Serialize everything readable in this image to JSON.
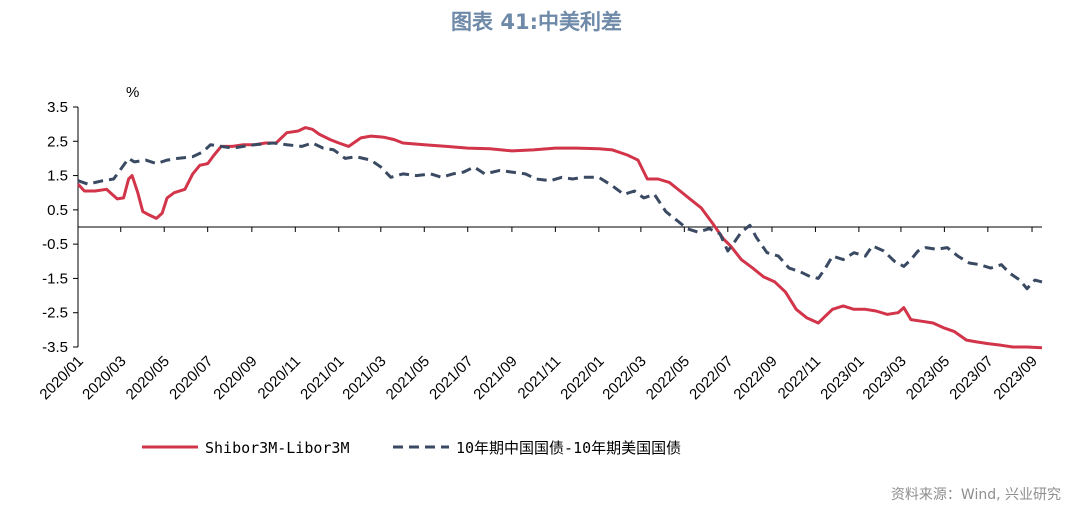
{
  "title": "图表 41:中美利差",
  "source": "资料来源：Wind, 兴业研究",
  "chart_data": {
    "type": "line",
    "unit_label": "%",
    "ylim": [
      -3.5,
      3.5
    ],
    "yticks": [
      3.5,
      2.5,
      1.5,
      0.5,
      -0.5,
      -1.5,
      -2.5,
      -3.5
    ],
    "xlim": [
      "2020-01-01",
      "2023-09-15"
    ],
    "xticks": [
      "2020/01",
      "2020/03",
      "2020/05",
      "2020/07",
      "2020/09",
      "2020/11",
      "2021/01",
      "2021/03",
      "2021/05",
      "2021/07",
      "2021/09",
      "2021/11",
      "2022/01",
      "2022/03",
      "2022/05",
      "2022/07",
      "2022/09",
      "2022/11",
      "2023/01",
      "2023/03",
      "2023/05",
      "2023/07",
      "2023/09"
    ],
    "grid": false,
    "legend_position": "bottom",
    "series": [
      {
        "name": "Shibor3M-Libor3M",
        "color": "#d2344a",
        "style": "solid",
        "points": [
          [
            "2020-01-01",
            1.25
          ],
          [
            "2020-01-10",
            1.05
          ],
          [
            "2020-01-25",
            1.05
          ],
          [
            "2020-02-10",
            1.1
          ],
          [
            "2020-02-25",
            0.82
          ],
          [
            "2020-03-05",
            0.85
          ],
          [
            "2020-03-12",
            1.4
          ],
          [
            "2020-03-17",
            1.5
          ],
          [
            "2020-03-25",
            1.0
          ],
          [
            "2020-04-01",
            0.45
          ],
          [
            "2020-04-10",
            0.35
          ],
          [
            "2020-04-20",
            0.25
          ],
          [
            "2020-04-28",
            0.4
          ],
          [
            "2020-05-05",
            0.85
          ],
          [
            "2020-05-15",
            1.0
          ],
          [
            "2020-05-30",
            1.1
          ],
          [
            "2020-06-10",
            1.55
          ],
          [
            "2020-06-20",
            1.8
          ],
          [
            "2020-07-01",
            1.85
          ],
          [
            "2020-07-10",
            2.1
          ],
          [
            "2020-07-20",
            2.35
          ],
          [
            "2020-08-05",
            2.35
          ],
          [
            "2020-08-20",
            2.4
          ],
          [
            "2020-09-05",
            2.4
          ],
          [
            "2020-09-20",
            2.45
          ],
          [
            "2020-10-05",
            2.45
          ],
          [
            "2020-10-20",
            2.75
          ],
          [
            "2020-11-05",
            2.8
          ],
          [
            "2020-11-15",
            2.9
          ],
          [
            "2020-11-25",
            2.85
          ],
          [
            "2020-12-05",
            2.7
          ],
          [
            "2020-12-20",
            2.55
          ],
          [
            "2021-01-01",
            2.45
          ],
          [
            "2021-01-15",
            2.35
          ],
          [
            "2021-02-01",
            2.6
          ],
          [
            "2021-02-15",
            2.65
          ],
          [
            "2021-03-05",
            2.62
          ],
          [
            "2021-03-20",
            2.55
          ],
          [
            "2021-04-01",
            2.45
          ],
          [
            "2021-05-01",
            2.4
          ],
          [
            "2021-06-01",
            2.35
          ],
          [
            "2021-07-01",
            2.3
          ],
          [
            "2021-08-01",
            2.28
          ],
          [
            "2021-09-01",
            2.22
          ],
          [
            "2021-10-01",
            2.25
          ],
          [
            "2021-11-01",
            2.3
          ],
          [
            "2021-12-01",
            2.3
          ],
          [
            "2022-01-01",
            2.28
          ],
          [
            "2022-01-20",
            2.25
          ],
          [
            "2022-02-10",
            2.1
          ],
          [
            "2022-02-25",
            1.95
          ],
          [
            "2022-03-10",
            1.4
          ],
          [
            "2022-03-25",
            1.4
          ],
          [
            "2022-04-10",
            1.3
          ],
          [
            "2022-04-25",
            1.05
          ],
          [
            "2022-05-10",
            0.8
          ],
          [
            "2022-05-25",
            0.55
          ],
          [
            "2022-06-10",
            0.1
          ],
          [
            "2022-06-25",
            -0.35
          ],
          [
            "2022-07-05",
            -0.55
          ],
          [
            "2022-07-20",
            -0.95
          ],
          [
            "2022-08-05",
            -1.2
          ],
          [
            "2022-08-20",
            -1.45
          ],
          [
            "2022-09-05",
            -1.6
          ],
          [
            "2022-09-20",
            -1.9
          ],
          [
            "2022-10-05",
            -2.4
          ],
          [
            "2022-10-20",
            -2.65
          ],
          [
            "2022-11-05",
            -2.8
          ],
          [
            "2022-11-15",
            -2.6
          ],
          [
            "2022-11-25",
            -2.4
          ],
          [
            "2022-12-10",
            -2.3
          ],
          [
            "2022-12-25",
            -2.4
          ],
          [
            "2023-01-10",
            -2.4
          ],
          [
            "2023-01-25",
            -2.45
          ],
          [
            "2023-02-10",
            -2.55
          ],
          [
            "2023-02-25",
            -2.5
          ],
          [
            "2023-03-05",
            -2.35
          ],
          [
            "2023-03-15",
            -2.7
          ],
          [
            "2023-03-31",
            -2.75
          ],
          [
            "2023-04-15",
            -2.8
          ],
          [
            "2023-05-01",
            -2.95
          ],
          [
            "2023-05-15",
            -3.05
          ],
          [
            "2023-06-01",
            -3.3
          ],
          [
            "2023-06-15",
            -3.35
          ],
          [
            "2023-07-01",
            -3.4
          ],
          [
            "2023-07-20",
            -3.45
          ],
          [
            "2023-08-05",
            -3.5
          ],
          [
            "2023-08-25",
            -3.5
          ],
          [
            "2023-09-15",
            -3.52
          ]
        ]
      },
      {
        "name": "10年期中国国债-10年期美国国债",
        "color": "#3b4a63",
        "style": "dashed",
        "points": [
          [
            "2020-01-01",
            1.35
          ],
          [
            "2020-01-15",
            1.25
          ],
          [
            "2020-02-05",
            1.35
          ],
          [
            "2020-02-20",
            1.4
          ],
          [
            "2020-03-05",
            1.8
          ],
          [
            "2020-03-12",
            2.0
          ],
          [
            "2020-03-20",
            1.9
          ],
          [
            "2020-04-05",
            1.95
          ],
          [
            "2020-04-20",
            1.85
          ],
          [
            "2020-05-05",
            1.95
          ],
          [
            "2020-05-20",
            2.0
          ],
          [
            "2020-06-10",
            2.05
          ],
          [
            "2020-06-25",
            2.2
          ],
          [
            "2020-07-05",
            2.4
          ],
          [
            "2020-07-20",
            2.35
          ],
          [
            "2020-08-05",
            2.3
          ],
          [
            "2020-08-20",
            2.35
          ],
          [
            "2020-09-05",
            2.4
          ],
          [
            "2020-10-01",
            2.45
          ],
          [
            "2020-10-20",
            2.4
          ],
          [
            "2020-11-10",
            2.35
          ],
          [
            "2020-11-25",
            2.45
          ],
          [
            "2020-12-10",
            2.3
          ],
          [
            "2020-12-25",
            2.25
          ],
          [
            "2021-01-10",
            2.0
          ],
          [
            "2021-01-25",
            2.05
          ],
          [
            "2021-02-15",
            1.95
          ],
          [
            "2021-03-01",
            1.75
          ],
          [
            "2021-03-15",
            1.45
          ],
          [
            "2021-04-01",
            1.55
          ],
          [
            "2021-04-20",
            1.5
          ],
          [
            "2021-05-10",
            1.55
          ],
          [
            "2021-05-25",
            1.45
          ],
          [
            "2021-06-10",
            1.55
          ],
          [
            "2021-06-25",
            1.6
          ],
          [
            "2021-07-10",
            1.75
          ],
          [
            "2021-07-25",
            1.55
          ],
          [
            "2021-08-15",
            1.65
          ],
          [
            "2021-09-01",
            1.6
          ],
          [
            "2021-09-20",
            1.55
          ],
          [
            "2021-10-05",
            1.4
          ],
          [
            "2021-10-25",
            1.35
          ],
          [
            "2021-11-10",
            1.45
          ],
          [
            "2021-11-25",
            1.4
          ],
          [
            "2021-12-10",
            1.45
          ],
          [
            "2022-01-01",
            1.45
          ],
          [
            "2022-01-20",
            1.2
          ],
          [
            "2022-02-05",
            0.95
          ],
          [
            "2022-02-20",
            1.05
          ],
          [
            "2022-03-05",
            0.85
          ],
          [
            "2022-03-20",
            0.95
          ],
          [
            "2022-04-05",
            0.45
          ],
          [
            "2022-04-20",
            0.2
          ],
          [
            "2022-05-05",
            -0.05
          ],
          [
            "2022-05-20",
            -0.15
          ],
          [
            "2022-06-05",
            -0.05
          ],
          [
            "2022-06-20",
            -0.2
          ],
          [
            "2022-07-01",
            -0.7
          ],
          [
            "2022-07-10",
            -0.45
          ],
          [
            "2022-07-20",
            -0.15
          ],
          [
            "2022-08-01",
            0.05
          ],
          [
            "2022-08-10",
            -0.3
          ],
          [
            "2022-08-25",
            -0.75
          ],
          [
            "2022-09-10",
            -0.85
          ],
          [
            "2022-09-25",
            -1.2
          ],
          [
            "2022-10-10",
            -1.3
          ],
          [
            "2022-10-25",
            -1.45
          ],
          [
            "2022-11-05",
            -1.5
          ],
          [
            "2022-11-15",
            -1.2
          ],
          [
            "2022-11-25",
            -0.85
          ],
          [
            "2022-12-10",
            -0.95
          ],
          [
            "2022-12-25",
            -0.75
          ],
          [
            "2023-01-10",
            -0.85
          ],
          [
            "2023-01-20",
            -0.55
          ],
          [
            "2023-02-05",
            -0.7
          ],
          [
            "2023-02-20",
            -1.0
          ],
          [
            "2023-03-05",
            -1.15
          ],
          [
            "2023-03-15",
            -0.95
          ],
          [
            "2023-03-25",
            -0.7
          ],
          [
            "2023-04-05",
            -0.6
          ],
          [
            "2023-04-20",
            -0.65
          ],
          [
            "2023-05-05",
            -0.6
          ],
          [
            "2023-05-20",
            -0.85
          ],
          [
            "2023-06-05",
            -1.05
          ],
          [
            "2023-06-20",
            -1.1
          ],
          [
            "2023-07-05",
            -1.2
          ],
          [
            "2023-07-20",
            -1.1
          ],
          [
            "2023-08-01",
            -1.35
          ],
          [
            "2023-08-15",
            -1.55
          ],
          [
            "2023-08-25",
            -1.8
          ],
          [
            "2023-09-05",
            -1.55
          ],
          [
            "2023-09-15",
            -1.6
          ]
        ]
      }
    ]
  }
}
